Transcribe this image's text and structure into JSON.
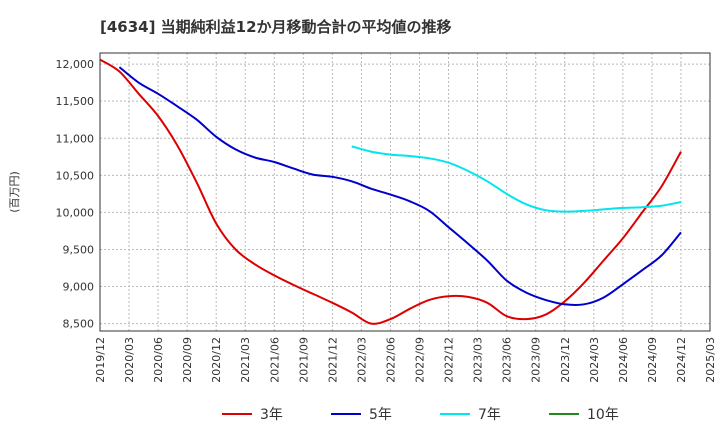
{
  "chart_data": {
    "type": "line",
    "title": "[4634]  当期純利益12か月移動合計の平均値の推移",
    "xlabel": "",
    "ylabel": "(百万円)",
    "ylim": [
      8400,
      12150
    ],
    "yticks": [
      8500,
      9000,
      9500,
      10000,
      10500,
      11000,
      11500,
      12000
    ],
    "ytick_labels": [
      "8,500",
      "9,000",
      "9,500",
      "10,000",
      "10,500",
      "11,000",
      "11,500",
      "12,000"
    ],
    "xticks": [
      "2019/12",
      "2020/03",
      "2020/06",
      "2020/09",
      "2020/12",
      "2021/03",
      "2021/06",
      "2021/09",
      "2021/12",
      "2022/03",
      "2022/06",
      "2022/09",
      "2022/12",
      "2023/03",
      "2023/06",
      "2023/09",
      "2023/12",
      "2024/03",
      "2024/06",
      "2024/09",
      "2024/12",
      "2025/03"
    ],
    "grid": true,
    "legend_position": "bottom",
    "series": [
      {
        "name": "3年",
        "color": "#dd0000",
        "points": [
          [
            "2019/12",
            12060
          ],
          [
            "2020/02",
            11900
          ],
          [
            "2020/04",
            11600
          ],
          [
            "2020/06",
            11300
          ],
          [
            "2020/08",
            10900
          ],
          [
            "2020/10",
            10400
          ],
          [
            "2020/12",
            9850
          ],
          [
            "2021/02",
            9500
          ],
          [
            "2021/04",
            9300
          ],
          [
            "2021/06",
            9150
          ],
          [
            "2021/08",
            9020
          ],
          [
            "2021/10",
            8900
          ],
          [
            "2021/12",
            8780
          ],
          [
            "2022/02",
            8650
          ],
          [
            "2022/04",
            8500
          ],
          [
            "2022/06",
            8560
          ],
          [
            "2022/08",
            8700
          ],
          [
            "2022/10",
            8820
          ],
          [
            "2022/12",
            8870
          ],
          [
            "2023/02",
            8860
          ],
          [
            "2023/04",
            8780
          ],
          [
            "2023/06",
            8600
          ],
          [
            "2023/08",
            8560
          ],
          [
            "2023/10",
            8620
          ],
          [
            "2023/12",
            8800
          ],
          [
            "2024/02",
            9050
          ],
          [
            "2024/04",
            9350
          ],
          [
            "2024/06",
            9650
          ],
          [
            "2024/08",
            10000
          ],
          [
            "2024/10",
            10350
          ],
          [
            "2024/12",
            10820
          ]
        ]
      },
      {
        "name": "5年",
        "color": "#0000cc",
        "points": [
          [
            "2020/02",
            11960
          ],
          [
            "2020/04",
            11750
          ],
          [
            "2020/06",
            11600
          ],
          [
            "2020/08",
            11430
          ],
          [
            "2020/10",
            11250
          ],
          [
            "2020/12",
            11020
          ],
          [
            "2021/02",
            10850
          ],
          [
            "2021/04",
            10740
          ],
          [
            "2021/06",
            10680
          ],
          [
            "2021/08",
            10590
          ],
          [
            "2021/10",
            10510
          ],
          [
            "2021/12",
            10480
          ],
          [
            "2022/02",
            10420
          ],
          [
            "2022/04",
            10320
          ],
          [
            "2022/06",
            10240
          ],
          [
            "2022/08",
            10150
          ],
          [
            "2022/10",
            10020
          ],
          [
            "2022/12",
            9800
          ],
          [
            "2023/02",
            9580
          ],
          [
            "2023/04",
            9350
          ],
          [
            "2023/06",
            9080
          ],
          [
            "2023/08",
            8920
          ],
          [
            "2023/10",
            8820
          ],
          [
            "2023/12",
            8760
          ],
          [
            "2024/02",
            8760
          ],
          [
            "2024/04",
            8850
          ],
          [
            "2024/06",
            9030
          ],
          [
            "2024/08",
            9220
          ],
          [
            "2024/10",
            9420
          ],
          [
            "2024/12",
            9730
          ]
        ]
      },
      {
        "name": "7年",
        "color": "#00e5ee",
        "points": [
          [
            "2022/02",
            10890
          ],
          [
            "2022/04",
            10820
          ],
          [
            "2022/06",
            10780
          ],
          [
            "2022/08",
            10760
          ],
          [
            "2022/10",
            10730
          ],
          [
            "2022/12",
            10670
          ],
          [
            "2023/02",
            10560
          ],
          [
            "2023/04",
            10420
          ],
          [
            "2023/06",
            10250
          ],
          [
            "2023/08",
            10110
          ],
          [
            "2023/10",
            10030
          ],
          [
            "2023/12",
            10010
          ],
          [
            "2024/02",
            10020
          ],
          [
            "2024/04",
            10040
          ],
          [
            "2024/06",
            10060
          ],
          [
            "2024/08",
            10070
          ],
          [
            "2024/10",
            10090
          ],
          [
            "2024/12",
            10140
          ]
        ]
      },
      {
        "name": "10年",
        "color": "#228822",
        "points": []
      }
    ]
  }
}
